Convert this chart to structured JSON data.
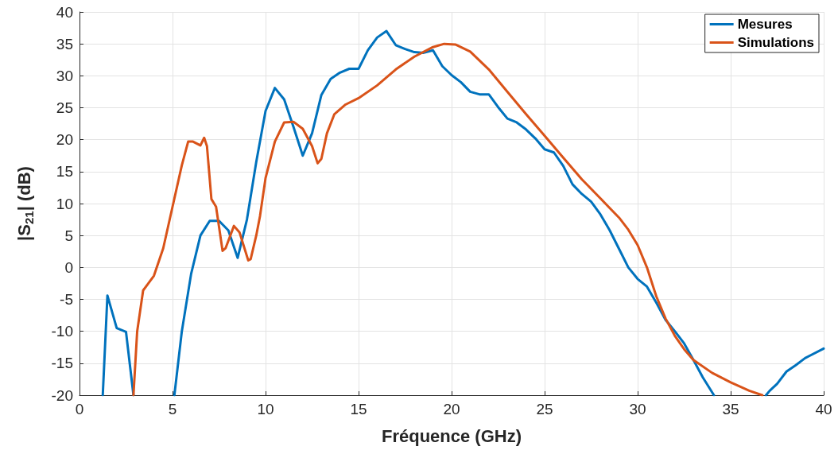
{
  "chart_data": {
    "type": "line",
    "xlabel": "Fréquence (GHz)",
    "ylabel": "|S$_{21}$| (dB)",
    "xlim": [
      0,
      40
    ],
    "xticks": [
      0,
      5,
      10,
      15,
      20,
      25,
      30,
      35,
      40
    ],
    "ylim": [
      -20,
      40
    ],
    "yticks": [
      -20,
      -15,
      -10,
      -5,
      0,
      5,
      10,
      15,
      20,
      25,
      30,
      35,
      40
    ],
    "grid": true,
    "legend": "top right",
    "marker": "none",
    "line_style": "solid",
    "series": [
      {
        "name": "Mesures",
        "color": "#0072bd",
        "x": [
          1.25,
          1.5,
          2,
          2.5,
          2.9,
          4,
          5.1,
          5.5,
          6,
          6.5,
          7,
          7.5,
          8,
          8.5,
          9,
          9.5,
          10,
          10.5,
          11,
          11.5,
          12,
          12.5,
          13,
          13.5,
          14,
          14.5,
          15,
          15.5,
          16,
          16.5,
          17,
          17.5,
          18,
          18.5,
          19,
          19.5,
          20,
          20.5,
          21,
          21.5,
          22,
          22.5,
          23,
          23.5,
          24,
          24.5,
          25,
          25.5,
          26,
          26.5,
          27,
          27.5,
          28,
          28.5,
          29,
          29.5,
          30,
          30.5,
          31,
          31.5,
          32,
          32.5,
          33,
          33.5,
          34.1,
          35.5,
          36.9,
          37.1,
          37.5,
          38,
          38.5,
          39,
          40
        ],
        "values": [
          -20,
          -4.4,
          -9.5,
          -10.1,
          -20,
          null,
          -20,
          -10,
          -1,
          5,
          7.3,
          7.3,
          5.8,
          1.5,
          7.5,
          16.5,
          24.5,
          28.1,
          26.3,
          22,
          17.5,
          21,
          27,
          29.5,
          30.5,
          31.1,
          31.1,
          34,
          36,
          37,
          34.8,
          34.2,
          33.7,
          33.6,
          34,
          31.5,
          30.1,
          29,
          27.5,
          27.1,
          27.1,
          25.1,
          23.3,
          22.7,
          21.6,
          20.2,
          18.5,
          18,
          15.9,
          13,
          11.5,
          10.3,
          8.3,
          5.8,
          2.9,
          0,
          -1.8,
          -3,
          -5.5,
          -8.2,
          -10,
          -11.9,
          -14.5,
          -17.2,
          -20,
          null,
          -20,
          -19.3,
          -18.2,
          -16.3,
          -15.3,
          -14.2,
          -12.7
        ]
      },
      {
        "name": "Simulations",
        "color": "#d95319",
        "x": [
          2.9,
          3.1,
          3.42,
          3.7,
          4,
          4.5,
          5,
          5.5,
          5.84,
          6.1,
          6.5,
          6.7,
          6.85,
          7.09,
          7.34,
          7.69,
          7.85,
          8.3,
          8.6,
          9.07,
          9.2,
          9.5,
          9.7,
          10,
          10.5,
          11,
          11.5,
          12,
          12.5,
          12.8,
          13,
          13.3,
          13.7,
          14.3,
          15,
          16,
          17,
          18,
          19,
          19.6,
          20.2,
          21,
          22,
          23,
          24,
          25,
          26,
          27,
          28,
          29,
          29.5,
          30,
          30.5,
          31,
          31.5,
          32,
          32.5,
          33,
          34,
          35,
          36,
          36.7
        ],
        "values": [
          -20,
          -10,
          -3.6,
          -2.5,
          -1.3,
          3,
          9.5,
          16,
          19.7,
          19.7,
          19.1,
          20.3,
          19,
          10.7,
          9.5,
          2.6,
          3,
          6.5,
          5.5,
          1.1,
          1.3,
          5,
          8,
          14,
          19.7,
          22.7,
          22.8,
          21.7,
          19,
          16.3,
          17,
          21,
          24,
          25.5,
          26.5,
          28.5,
          31,
          33,
          34.5,
          35,
          34.9,
          33.8,
          31,
          27.5,
          24,
          20.6,
          17.2,
          13.8,
          10.8,
          7.8,
          5.9,
          3.5,
          0,
          -4.5,
          -8,
          -10.7,
          -12.8,
          -14.5,
          -16.5,
          -18,
          -19.3,
          -20
        ]
      }
    ]
  }
}
